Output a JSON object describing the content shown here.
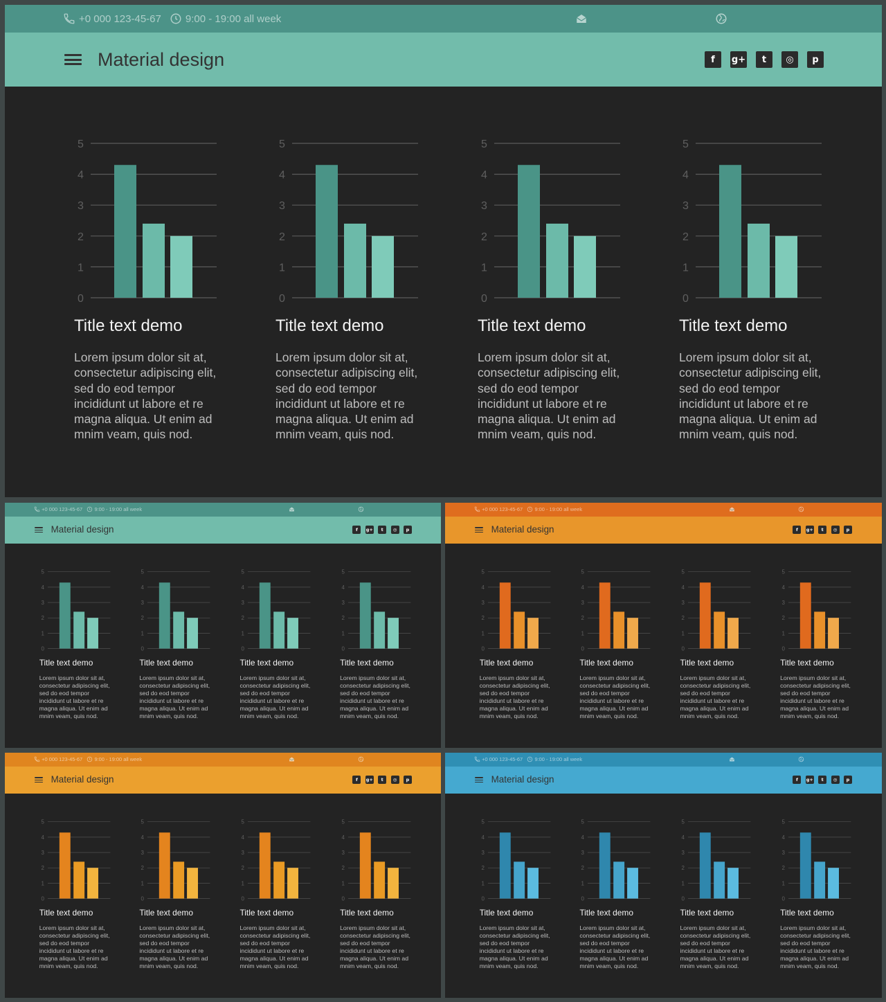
{
  "topbar": {
    "phone": "+0 000 123-45-67",
    "hours": "9:00 - 19:00 all week"
  },
  "header": {
    "title": "Material design"
  },
  "icons": {
    "menu": "hamburger-menu-icon",
    "phone": "phone-icon",
    "clock": "clock-icon",
    "mail": "mail-icon",
    "globe": "globe-icon",
    "social": [
      "facebook-icon",
      "google-plus-icon",
      "twitter-icon",
      "instagram-icon",
      "pinterest-icon"
    ]
  },
  "social_glyphs": [
    "f",
    "g+",
    "t",
    "◎",
    "p"
  ],
  "card": {
    "title": "Title text demo",
    "body": "Lorem ipsum dolor sit at, consectetur adipiscing elit, sed do eod tempor incididunt ut labore et re magna aliqua. Ut enim ad mnim veam, quis nod."
  },
  "chart_data": {
    "type": "bar",
    "y_ticks": [
      "0",
      "1",
      "2",
      "3",
      "4",
      "5"
    ],
    "ylim": [
      0,
      5
    ],
    "values": [
      4.3,
      2.4,
      2.0
    ]
  },
  "themes": {
    "teal": {
      "topbar": "#4c9388",
      "header": "#72bcab",
      "bars": [
        "#4a9487",
        "#6cbaa9",
        "#7fcbb9"
      ]
    },
    "orange": {
      "topbar": "#df6d1e",
      "header": "#e8962b",
      "bars": [
        "#e06a1e",
        "#e8902a",
        "#f0a94b"
      ]
    },
    "amber": {
      "topbar": "#e0851f",
      "header": "#eba02e",
      "bars": [
        "#e4841e",
        "#e99a24",
        "#f2b43e"
      ]
    },
    "blue": {
      "topbar": "#2f8fb4",
      "header": "#45a9d0",
      "bars": [
        "#2f87ad",
        "#45a4cb",
        "#5bbbe0"
      ]
    }
  }
}
